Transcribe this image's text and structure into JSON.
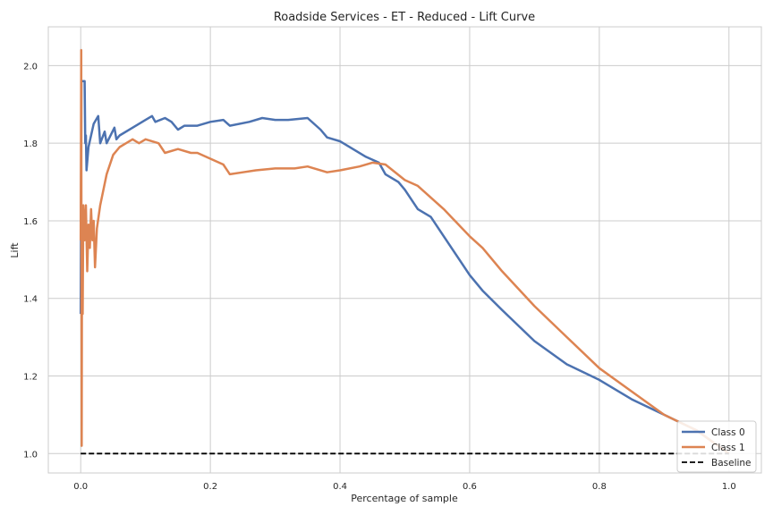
{
  "chart_data": {
    "type": "line",
    "title": "Roadside Services - ET - Reduced - Lift Curve",
    "xlabel": "Percentage of sample",
    "ylabel": "Lift",
    "xlim": [
      -0.05,
      1.05
    ],
    "ylim": [
      0.95,
      2.1
    ],
    "xticks": [
      0.0,
      0.2,
      0.4,
      0.6,
      0.8,
      1.0
    ],
    "xtick_labels": [
      "0.0",
      "0.2",
      "0.4",
      "0.6",
      "0.8",
      "1.0"
    ],
    "yticks": [
      1.0,
      1.2,
      1.4,
      1.6,
      1.8,
      2.0
    ],
    "ytick_labels": [
      "1.0",
      "1.2",
      "1.4",
      "1.6",
      "1.8",
      "2.0"
    ],
    "grid": true,
    "legend_position": "lower-right",
    "series": [
      {
        "name": "Class 0",
        "color": "#4c72b0",
        "dash": "solid",
        "points": [
          [
            0.0,
            1.36
          ],
          [
            0.001,
            1.96
          ],
          [
            0.006,
            1.96
          ],
          [
            0.007,
            1.8
          ],
          [
            0.008,
            1.82
          ],
          [
            0.009,
            1.73
          ],
          [
            0.012,
            1.79
          ],
          [
            0.02,
            1.85
          ],
          [
            0.027,
            1.87
          ],
          [
            0.03,
            1.8
          ],
          [
            0.037,
            1.83
          ],
          [
            0.04,
            1.8
          ],
          [
            0.052,
            1.84
          ],
          [
            0.055,
            1.81
          ],
          [
            0.06,
            1.82
          ],
          [
            0.08,
            1.84
          ],
          [
            0.1,
            1.86
          ],
          [
            0.11,
            1.87
          ],
          [
            0.115,
            1.855
          ],
          [
            0.13,
            1.865
          ],
          [
            0.14,
            1.855
          ],
          [
            0.15,
            1.835
          ],
          [
            0.16,
            1.845
          ],
          [
            0.18,
            1.845
          ],
          [
            0.2,
            1.855
          ],
          [
            0.22,
            1.86
          ],
          [
            0.23,
            1.845
          ],
          [
            0.26,
            1.855
          ],
          [
            0.28,
            1.865
          ],
          [
            0.3,
            1.86
          ],
          [
            0.32,
            1.86
          ],
          [
            0.35,
            1.865
          ],
          [
            0.37,
            1.835
          ],
          [
            0.38,
            1.815
          ],
          [
            0.4,
            1.805
          ],
          [
            0.42,
            1.785
          ],
          [
            0.44,
            1.765
          ],
          [
            0.46,
            1.75
          ],
          [
            0.47,
            1.72
          ],
          [
            0.49,
            1.7
          ],
          [
            0.5,
            1.68
          ],
          [
            0.52,
            1.63
          ],
          [
            0.54,
            1.61
          ],
          [
            0.56,
            1.56
          ],
          [
            0.6,
            1.46
          ],
          [
            0.62,
            1.42
          ],
          [
            0.65,
            1.37
          ],
          [
            0.7,
            1.29
          ],
          [
            0.75,
            1.23
          ],
          [
            0.8,
            1.19
          ],
          [
            0.85,
            1.14
          ],
          [
            0.9,
            1.1
          ],
          [
            0.95,
            1.06
          ],
          [
            1.0,
            1.0
          ]
        ]
      },
      {
        "name": "Class 1",
        "color": "#dd8452",
        "dash": "solid",
        "points": [
          [
            0.0,
            1.55
          ],
          [
            0.0008,
            2.04
          ],
          [
            0.0015,
            1.02
          ],
          [
            0.002,
            1.6
          ],
          [
            0.003,
            1.36
          ],
          [
            0.004,
            1.64
          ],
          [
            0.006,
            1.55
          ],
          [
            0.008,
            1.64
          ],
          [
            0.01,
            1.47
          ],
          [
            0.012,
            1.59
          ],
          [
            0.014,
            1.53
          ],
          [
            0.016,
            1.63
          ],
          [
            0.018,
            1.55
          ],
          [
            0.02,
            1.6
          ],
          [
            0.022,
            1.48
          ],
          [
            0.025,
            1.58
          ],
          [
            0.03,
            1.64
          ],
          [
            0.035,
            1.68
          ],
          [
            0.04,
            1.72
          ],
          [
            0.05,
            1.77
          ],
          [
            0.06,
            1.79
          ],
          [
            0.07,
            1.8
          ],
          [
            0.08,
            1.81
          ],
          [
            0.09,
            1.8
          ],
          [
            0.1,
            1.81
          ],
          [
            0.12,
            1.8
          ],
          [
            0.13,
            1.775
          ],
          [
            0.15,
            1.785
          ],
          [
            0.17,
            1.775
          ],
          [
            0.18,
            1.775
          ],
          [
            0.2,
            1.76
          ],
          [
            0.22,
            1.745
          ],
          [
            0.23,
            1.72
          ],
          [
            0.25,
            1.725
          ],
          [
            0.27,
            1.73
          ],
          [
            0.3,
            1.735
          ],
          [
            0.33,
            1.735
          ],
          [
            0.35,
            1.74
          ],
          [
            0.38,
            1.725
          ],
          [
            0.4,
            1.73
          ],
          [
            0.43,
            1.74
          ],
          [
            0.45,
            1.75
          ],
          [
            0.47,
            1.745
          ],
          [
            0.5,
            1.705
          ],
          [
            0.52,
            1.69
          ],
          [
            0.54,
            1.66
          ],
          [
            0.56,
            1.63
          ],
          [
            0.6,
            1.56
          ],
          [
            0.62,
            1.53
          ],
          [
            0.65,
            1.47
          ],
          [
            0.7,
            1.38
          ],
          [
            0.75,
            1.3
          ],
          [
            0.8,
            1.22
          ],
          [
            0.85,
            1.16
          ],
          [
            0.9,
            1.1
          ],
          [
            0.95,
            1.06
          ],
          [
            1.0,
            1.0
          ]
        ]
      },
      {
        "name": "Baseline",
        "color": "#000000",
        "dash": "dashed",
        "points": [
          [
            0.0,
            1.0
          ],
          [
            1.0,
            1.0
          ]
        ]
      }
    ]
  }
}
